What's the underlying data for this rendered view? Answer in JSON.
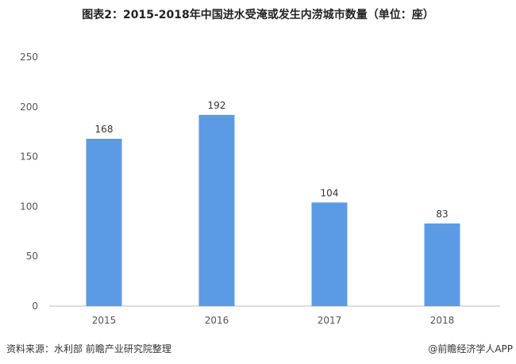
{
  "chart_data": {
    "type": "bar",
    "title": "图表2：2015-2018年中国进水受淹或发生内涝城市数量（单位：座）",
    "categories": [
      "2015",
      "2016",
      "2017",
      "2018"
    ],
    "values": [
      168,
      192,
      104,
      83
    ],
    "ylim": [
      0,
      250
    ],
    "yticks": [
      0,
      50,
      100,
      150,
      200,
      250
    ],
    "xlabel": "",
    "ylabel": "",
    "grid": false,
    "bar_color": "#5B9BE5"
  },
  "footer": {
    "source": "资料来源：水利部 前瞻产业研究院整理",
    "credit": "@前瞻经济学人APP"
  },
  "watermark": "前瞻产业研究院"
}
